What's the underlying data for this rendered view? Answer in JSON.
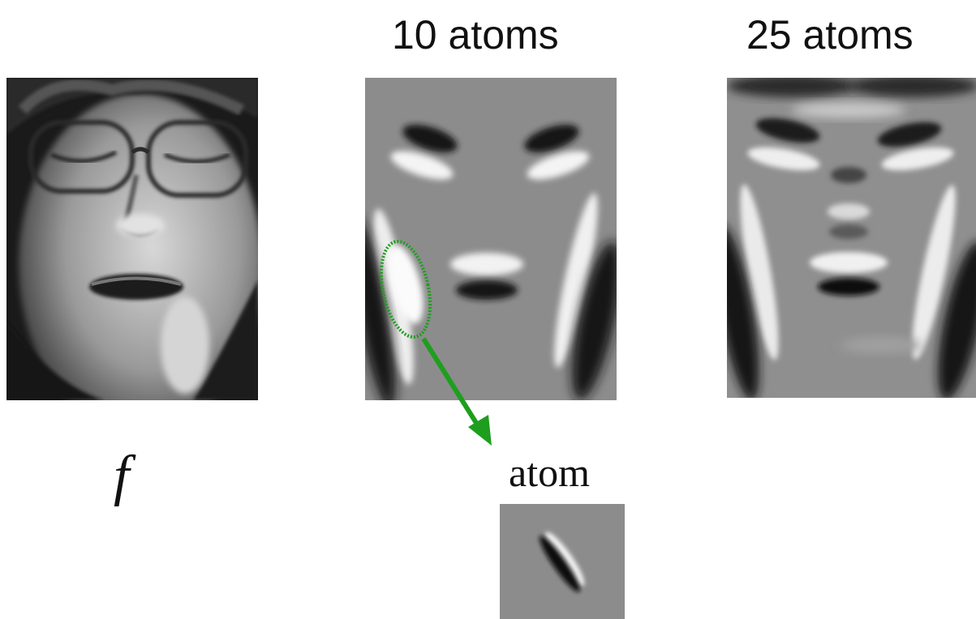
{
  "labels": {
    "title_10": "10 atoms",
    "title_25": "25 atoms",
    "f_label": "f",
    "atom_label": "atom"
  },
  "images": {
    "original": "grayscale photograph of a woman's face wearing glasses, eyes closed",
    "approx_10": "face approximation built from 10 oriented gabor-like atoms on gray background",
    "approx_25": "face approximation built from 25 oriented atoms, more detail",
    "atom": "single elongated oriented atom: dark/light stripe pair on gray"
  },
  "colors": {
    "highlight": "#1e9e1e",
    "background_gray": "#8c8c8c"
  }
}
